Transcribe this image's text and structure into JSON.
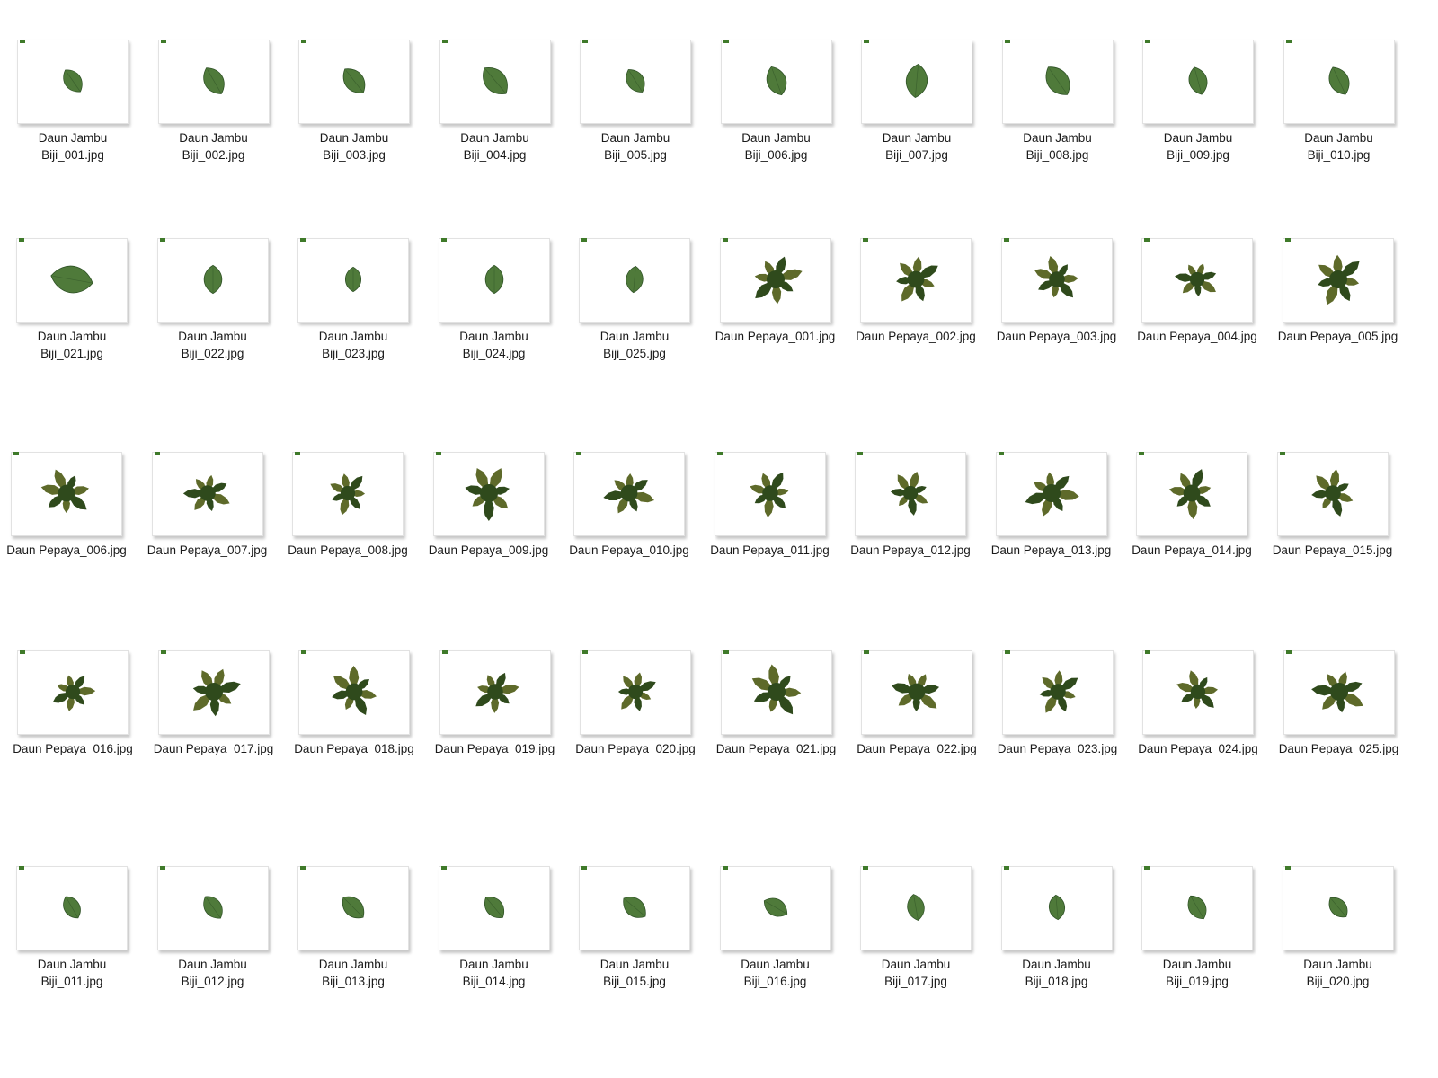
{
  "colors": {
    "jambu_leaf": "#4f7a3a",
    "jambu_leaf_dark": "#2f5226",
    "pepaya_leaf": "#2f4a1c",
    "pepaya_leaf_light": "#5e6a2a",
    "tag_green": "#3f7a2a"
  },
  "rows": [
    {
      "files": [
        {
          "line1": "Daun Jambu",
          "line2": "Biji_001.jpg",
          "type": "jambu",
          "icon": "guava-leaf-thumbnail"
        },
        {
          "line1": "Daun Jambu",
          "line2": "Biji_002.jpg",
          "type": "jambu",
          "icon": "guava-leaf-thumbnail"
        },
        {
          "line1": "Daun Jambu",
          "line2": "Biji_003.jpg",
          "type": "jambu",
          "icon": "guava-leaf-thumbnail"
        },
        {
          "line1": "Daun Jambu",
          "line2": "Biji_004.jpg",
          "type": "jambu",
          "icon": "guava-leaf-thumbnail"
        },
        {
          "line1": "Daun Jambu",
          "line2": "Biji_005.jpg",
          "type": "jambu",
          "icon": "guava-leaf-thumbnail"
        },
        {
          "line1": "Daun Jambu",
          "line2": "Biji_006.jpg",
          "type": "jambu",
          "icon": "guava-leaf-thumbnail"
        },
        {
          "line1": "Daun Jambu",
          "line2": "Biji_007.jpg",
          "type": "jambu",
          "icon": "guava-leaf-thumbnail"
        },
        {
          "line1": "Daun Jambu",
          "line2": "Biji_008.jpg",
          "type": "jambu",
          "icon": "guava-leaf-thumbnail"
        },
        {
          "line1": "Daun Jambu",
          "line2": "Biji_009.jpg",
          "type": "jambu",
          "icon": "guava-leaf-thumbnail"
        },
        {
          "line1": "Daun Jambu",
          "line2": "Biji_010.jpg",
          "type": "jambu",
          "icon": "guava-leaf-thumbnail"
        }
      ]
    },
    {
      "files": [
        {
          "line1": "Daun Jambu",
          "line2": "Biji_021.jpg",
          "type": "jambu",
          "icon": "guava-leaf-thumbnail"
        },
        {
          "line1": "Daun Jambu",
          "line2": "Biji_022.jpg",
          "type": "jambu",
          "icon": "guava-leaf-thumbnail"
        },
        {
          "line1": "Daun Jambu",
          "line2": "Biji_023.jpg",
          "type": "jambu",
          "icon": "guava-leaf-thumbnail"
        },
        {
          "line1": "Daun Jambu",
          "line2": "Biji_024.jpg",
          "type": "jambu",
          "icon": "guava-leaf-thumbnail"
        },
        {
          "line1": "Daun Jambu",
          "line2": "Biji_025.jpg",
          "type": "jambu",
          "icon": "guava-leaf-thumbnail"
        },
        {
          "line1": "Daun Pepaya_001.jpg",
          "line2": "",
          "type": "pepaya",
          "icon": "papaya-leaf-thumbnail"
        },
        {
          "line1": "Daun Pepaya_002.jpg",
          "line2": "",
          "type": "pepaya",
          "icon": "papaya-leaf-thumbnail"
        },
        {
          "line1": "Daun Pepaya_003.jpg",
          "line2": "",
          "type": "pepaya",
          "icon": "papaya-leaf-thumbnail"
        },
        {
          "line1": "Daun Pepaya_004.jpg",
          "line2": "",
          "type": "pepaya",
          "icon": "papaya-leaf-thumbnail"
        },
        {
          "line1": "Daun Pepaya_005.jpg",
          "line2": "",
          "type": "pepaya",
          "icon": "papaya-leaf-thumbnail"
        }
      ]
    },
    {
      "files": [
        {
          "line1": "Daun Pepaya_006.jpg",
          "line2": "",
          "type": "pepaya",
          "icon": "papaya-leaf-thumbnail"
        },
        {
          "line1": "Daun Pepaya_007.jpg",
          "line2": "",
          "type": "pepaya",
          "icon": "papaya-leaf-thumbnail"
        },
        {
          "line1": "Daun Pepaya_008.jpg",
          "line2": "",
          "type": "pepaya",
          "icon": "papaya-leaf-thumbnail"
        },
        {
          "line1": "Daun Pepaya_009.jpg",
          "line2": "",
          "type": "pepaya",
          "icon": "papaya-leaf-thumbnail"
        },
        {
          "line1": "Daun Pepaya_010.jpg",
          "line2": "",
          "type": "pepaya",
          "icon": "papaya-leaf-thumbnail"
        },
        {
          "line1": "Daun Pepaya_011.jpg",
          "line2": "",
          "type": "pepaya",
          "icon": "papaya-leaf-thumbnail"
        },
        {
          "line1": "Daun Pepaya_012.jpg",
          "line2": "",
          "type": "pepaya",
          "icon": "papaya-leaf-thumbnail"
        },
        {
          "line1": "Daun Pepaya_013.jpg",
          "line2": "",
          "type": "pepaya",
          "icon": "papaya-leaf-thumbnail"
        },
        {
          "line1": "Daun Pepaya_014.jpg",
          "line2": "",
          "type": "pepaya",
          "icon": "papaya-leaf-thumbnail"
        },
        {
          "line1": "Daun Pepaya_015.jpg",
          "line2": "",
          "type": "pepaya",
          "icon": "papaya-leaf-thumbnail"
        }
      ]
    },
    {
      "files": [
        {
          "line1": "Daun Pepaya_016.jpg",
          "line2": "",
          "type": "pepaya",
          "icon": "papaya-leaf-thumbnail"
        },
        {
          "line1": "Daun Pepaya_017.jpg",
          "line2": "",
          "type": "pepaya",
          "icon": "papaya-leaf-thumbnail"
        },
        {
          "line1": "Daun Pepaya_018.jpg",
          "line2": "",
          "type": "pepaya",
          "icon": "papaya-leaf-thumbnail"
        },
        {
          "line1": "Daun Pepaya_019.jpg",
          "line2": "",
          "type": "pepaya",
          "icon": "papaya-leaf-thumbnail"
        },
        {
          "line1": "Daun Pepaya_020.jpg",
          "line2": "",
          "type": "pepaya",
          "icon": "papaya-leaf-thumbnail"
        },
        {
          "line1": "Daun Pepaya_021.jpg",
          "line2": "",
          "type": "pepaya",
          "icon": "papaya-leaf-thumbnail"
        },
        {
          "line1": "Daun Pepaya_022.jpg",
          "line2": "",
          "type": "pepaya",
          "icon": "papaya-leaf-thumbnail"
        },
        {
          "line1": "Daun Pepaya_023.jpg",
          "line2": "",
          "type": "pepaya",
          "icon": "papaya-leaf-thumbnail"
        },
        {
          "line1": "Daun Pepaya_024.jpg",
          "line2": "",
          "type": "pepaya",
          "icon": "papaya-leaf-thumbnail"
        },
        {
          "line1": "Daun Pepaya_025.jpg",
          "line2": "",
          "type": "pepaya",
          "icon": "papaya-leaf-thumbnail"
        }
      ]
    },
    {
      "files": [
        {
          "line1": "Daun Jambu",
          "line2": "Biji_011.jpg",
          "type": "jambu",
          "icon": "guava-leaf-thumbnail"
        },
        {
          "line1": "Daun Jambu",
          "line2": "Biji_012.jpg",
          "type": "jambu",
          "icon": "guava-leaf-thumbnail"
        },
        {
          "line1": "Daun Jambu",
          "line2": "Biji_013.jpg",
          "type": "jambu",
          "icon": "guava-leaf-thumbnail"
        },
        {
          "line1": "Daun Jambu",
          "line2": "Biji_014.jpg",
          "type": "jambu",
          "icon": "guava-leaf-thumbnail"
        },
        {
          "line1": "Daun Jambu",
          "line2": "Biji_015.jpg",
          "type": "jambu",
          "icon": "guava-leaf-thumbnail"
        },
        {
          "line1": "Daun Jambu",
          "line2": "Biji_016.jpg",
          "type": "jambu",
          "icon": "guava-leaf-thumbnail"
        },
        {
          "line1": "Daun Jambu",
          "line2": "Biji_017.jpg",
          "type": "jambu",
          "icon": "guava-leaf-thumbnail"
        },
        {
          "line1": "Daun Jambu",
          "line2": "Biji_018.jpg",
          "type": "jambu",
          "icon": "guava-leaf-thumbnail"
        },
        {
          "line1": "Daun Jambu",
          "line2": "Biji_019.jpg",
          "type": "jambu",
          "icon": "guava-leaf-thumbnail"
        },
        {
          "line1": "Daun Jambu",
          "line2": "Biji_020.jpg",
          "type": "jambu",
          "icon": "guava-leaf-thumbnail"
        }
      ]
    }
  ]
}
